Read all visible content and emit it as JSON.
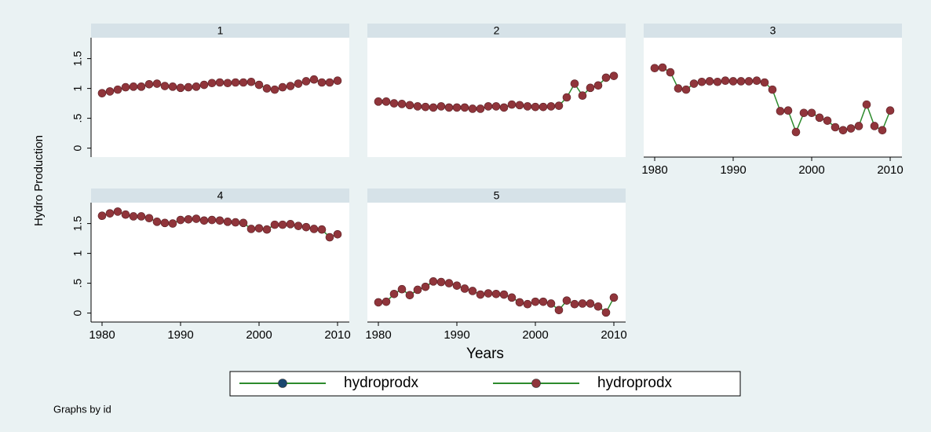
{
  "figure": {
    "ylabel": "Hydro Production",
    "xlabel": "Years",
    "note": "Graphs by id",
    "legend": [
      {
        "name": "hydroprodx",
        "marker_color": "#1a476f",
        "line_color": "#2d8b2d"
      },
      {
        "name": "hydroprodx",
        "marker_color": "#90353b",
        "line_color": "#2d8b2d"
      }
    ]
  },
  "chart_data": [
    {
      "type": "line",
      "title": "1",
      "color": "#90353b",
      "line_color": "#2d8b2d",
      "x": [
        1980,
        1981,
        1982,
        1983,
        1984,
        1985,
        1986,
        1987,
        1988,
        1989,
        1990,
        1991,
        1992,
        1993,
        1994,
        1995,
        1996,
        1997,
        1998,
        1999,
        2000,
        2001,
        2002,
        2003,
        2004,
        2005,
        2006,
        2007,
        2008,
        2009,
        2010
      ],
      "values": [
        0.92,
        0.95,
        0.98,
        1.02,
        1.03,
        1.03,
        1.07,
        1.08,
        1.04,
        1.03,
        1.01,
        1.02,
        1.03,
        1.06,
        1.09,
        1.1,
        1.09,
        1.1,
        1.1,
        1.11,
        1.06,
        1.0,
        0.98,
        1.02,
        1.04,
        1.08,
        1.12,
        1.15,
        1.1,
        1.1,
        1.13
      ],
      "xlim": [
        1978.6,
        2011.5
      ],
      "xticks": [
        1980,
        1990,
        2000,
        2010
      ],
      "ylim": [
        -0.15,
        1.85
      ],
      "yticks": [
        0,
        {
          "value": 0.5,
          "label": ".5"
        },
        1,
        1.5
      ]
    },
    {
      "type": "line",
      "title": "2",
      "color": "#90353b",
      "line_color": "#2d8b2d",
      "x": [
        1980,
        1981,
        1982,
        1983,
        1984,
        1985,
        1986,
        1987,
        1988,
        1989,
        1990,
        1991,
        1992,
        1993,
        1994,
        1995,
        1996,
        1997,
        1998,
        1999,
        2000,
        2001,
        2002,
        2003,
        2004,
        2005,
        2006,
        2007,
        2008,
        2009,
        2010
      ],
      "values": [
        0.78,
        0.78,
        0.75,
        0.74,
        0.72,
        0.7,
        0.69,
        0.68,
        0.7,
        0.68,
        0.68,
        0.68,
        0.66,
        0.66,
        0.7,
        0.7,
        0.68,
        0.73,
        0.72,
        0.7,
        0.69,
        0.69,
        0.7,
        0.71,
        0.85,
        1.08,
        0.88,
        1.01,
        1.05,
        1.18,
        1.21
      ],
      "xlim": [
        1978.6,
        2011.5
      ],
      "xticks": [
        1980,
        1990,
        2000,
        2010
      ],
      "ylim": [
        -0.15,
        1.85
      ],
      "yticks": [
        0,
        {
          "value": 0.5,
          "label": ".5"
        },
        1,
        1.5
      ]
    },
    {
      "type": "line",
      "title": "3",
      "color": "#90353b",
      "line_color": "#2d8b2d",
      "x": [
        1980,
        1981,
        1982,
        1983,
        1984,
        1985,
        1986,
        1987,
        1988,
        1989,
        1990,
        1991,
        1992,
        1993,
        1994,
        1995,
        1996,
        1997,
        1998,
        1999,
        2000,
        2001,
        2002,
        2003,
        2004,
        2005,
        2006,
        2007,
        2008,
        2009,
        2010
      ],
      "values": [
        1.34,
        1.35,
        1.27,
        1.0,
        0.98,
        1.08,
        1.11,
        1.12,
        1.11,
        1.13,
        1.12,
        1.12,
        1.12,
        1.13,
        1.1,
        0.98,
        0.62,
        0.63,
        0.27,
        0.59,
        0.59,
        0.51,
        0.46,
        0.35,
        0.3,
        0.33,
        0.37,
        0.73,
        0.37,
        0.3,
        0.63
      ],
      "xlim": [
        1978.6,
        2011.5
      ],
      "xticks": [
        1980,
        1990,
        2000,
        2010
      ],
      "ylim": [
        -0.15,
        1.85
      ],
      "yticks": [
        0,
        {
          "value": 0.5,
          "label": ".5"
        },
        1,
        1.5
      ]
    },
    {
      "type": "line",
      "title": "4",
      "color": "#90353b",
      "line_color": "#2d8b2d",
      "x": [
        1980,
        1981,
        1982,
        1983,
        1984,
        1985,
        1986,
        1987,
        1988,
        1989,
        1990,
        1991,
        1992,
        1993,
        1994,
        1995,
        1996,
        1997,
        1998,
        1999,
        2000,
        2001,
        2002,
        2003,
        2004,
        2005,
        2006,
        2007,
        2008,
        2009,
        2010
      ],
      "values": [
        1.63,
        1.67,
        1.7,
        1.65,
        1.62,
        1.62,
        1.59,
        1.53,
        1.51,
        1.5,
        1.56,
        1.57,
        1.58,
        1.55,
        1.56,
        1.55,
        1.53,
        1.52,
        1.51,
        1.41,
        1.42,
        1.4,
        1.48,
        1.48,
        1.49,
        1.46,
        1.44,
        1.41,
        1.4,
        1.27,
        1.32
      ],
      "xlim": [
        1978.6,
        2011.5
      ],
      "xticks": [
        1980,
        1990,
        2000,
        2010
      ],
      "ylim": [
        -0.15,
        1.85
      ],
      "yticks": [
        0,
        {
          "value": 0.5,
          "label": ".5"
        },
        1,
        1.5
      ]
    },
    {
      "type": "line",
      "title": "5",
      "color": "#90353b",
      "line_color": "#2d8b2d",
      "x": [
        1980,
        1981,
        1982,
        1983,
        1984,
        1985,
        1986,
        1987,
        1988,
        1989,
        1990,
        1991,
        1992,
        1993,
        1994,
        1995,
        1996,
        1997,
        1998,
        1999,
        2000,
        2001,
        2002,
        2003,
        2004,
        2005,
        2006,
        2007,
        2008,
        2009,
        2010
      ],
      "values": [
        0.18,
        0.19,
        0.32,
        0.4,
        0.3,
        0.39,
        0.44,
        0.53,
        0.52,
        0.5,
        0.46,
        0.41,
        0.37,
        0.31,
        0.33,
        0.32,
        0.31,
        0.26,
        0.18,
        0.15,
        0.19,
        0.19,
        0.16,
        0.05,
        0.21,
        0.15,
        0.16,
        0.16,
        0.11,
        0.01,
        0.26
      ],
      "xlim": [
        1978.6,
        2011.5
      ],
      "xticks": [
        1980,
        1990,
        2000,
        2010
      ],
      "ylim": [
        -0.15,
        1.85
      ],
      "yticks": [
        0,
        {
          "value": 0.5,
          "label": ".5"
        },
        1,
        1.5
      ]
    }
  ]
}
